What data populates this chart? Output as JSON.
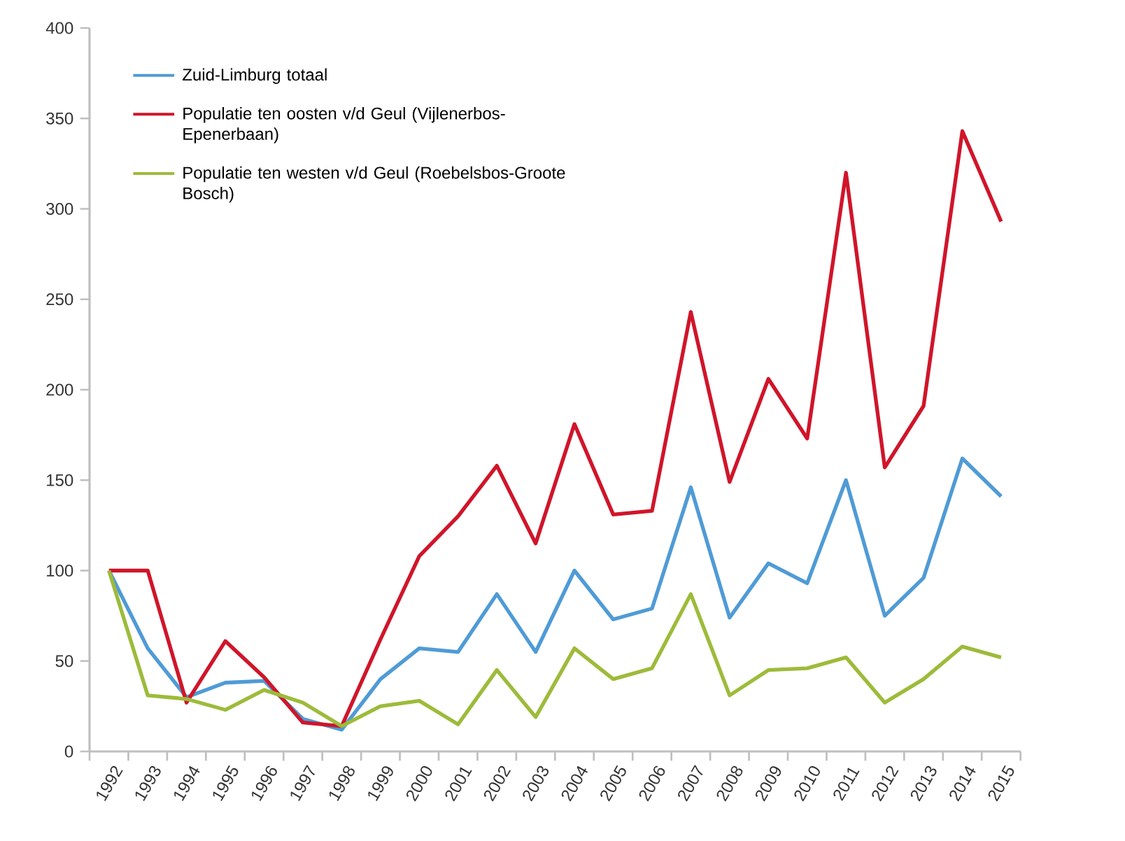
{
  "chart_data": {
    "type": "line",
    "categories": [
      "1992",
      "1993",
      "1994",
      "1995",
      "1996",
      "1997",
      "1998",
      "1999",
      "2000",
      "2001",
      "2002",
      "2003",
      "2004",
      "2005",
      "2006",
      "2007",
      "2008",
      "2009",
      "2010",
      "2011",
      "2012",
      "2013",
      "2014",
      "2015"
    ],
    "series": [
      {
        "name": "Zuid-Limburg totaal",
        "color": "#4f9bd6",
        "values": [
          100,
          57,
          30,
          38,
          39,
          18,
          12,
          40,
          57,
          55,
          87,
          55,
          100,
          73,
          79,
          146,
          74,
          104,
          93,
          150,
          75,
          96,
          162,
          141
        ]
      },
      {
        "name": "Populatie ten oosten v/d Geul (Vijlenerbos-Epenerbaan)",
        "color": "#d0152a",
        "values": [
          100,
          100,
          27,
          61,
          41,
          16,
          14,
          62,
          108,
          130,
          158,
          115,
          181,
          131,
          133,
          243,
          149,
          206,
          173,
          320,
          157,
          191,
          343,
          293
        ]
      },
      {
        "name": "Populatie ten westen v/d Geul (Roebelsbos-Groote Bosch)",
        "color": "#9dbb3a",
        "values": [
          100,
          31,
          29,
          23,
          34,
          27,
          14,
          25,
          28,
          15,
          45,
          19,
          57,
          40,
          46,
          87,
          31,
          45,
          46,
          52,
          27,
          40,
          58,
          52
        ]
      }
    ],
    "ylim": [
      0,
      400
    ],
    "yticks": [
      0,
      50,
      100,
      150,
      200,
      250,
      300,
      350,
      400
    ],
    "legend": "top left"
  }
}
